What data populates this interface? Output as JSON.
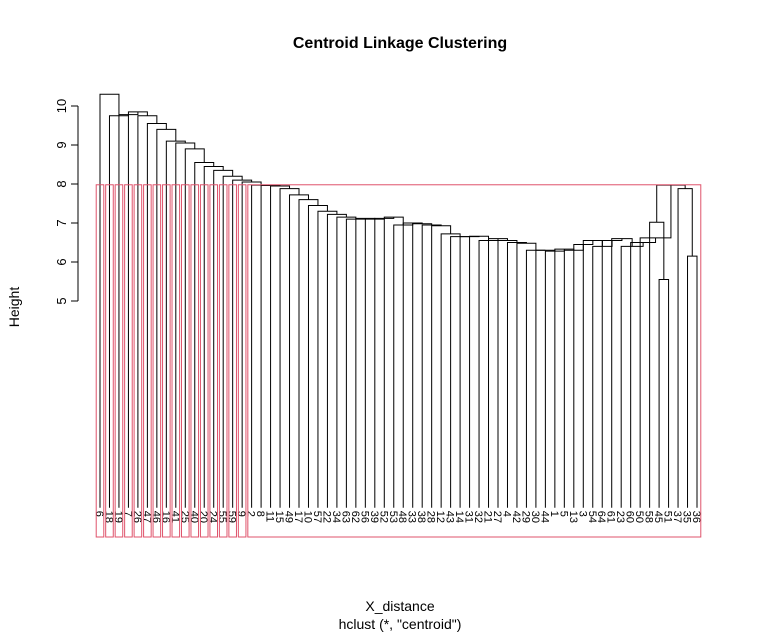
{
  "chart_data": {
    "type": "dendrogram",
    "title": "Centroid Linkage Clustering",
    "xlabel": "X_distance",
    "subtitle": "hclust (*, \"centroid\")",
    "ylabel": "Height",
    "labels": [
      6,
      18,
      19,
      7,
      26,
      47,
      46,
      16,
      41,
      25,
      40,
      20,
      24,
      55,
      59,
      9,
      2,
      8,
      11,
      15,
      49,
      17,
      10,
      57,
      22,
      34,
      63,
      62,
      56,
      39,
      52,
      53,
      48,
      33,
      38,
      28,
      12,
      43,
      14,
      31,
      32,
      21,
      27,
      4,
      42,
      29,
      30,
      44,
      1,
      5,
      13,
      3,
      54,
      64,
      61,
      23,
      60,
      50,
      58,
      45,
      51,
      37,
      35,
      36
    ],
    "merge": [
      [
        -63,
        -64
      ],
      [
        -62,
        1
      ],
      [
        -60,
        -61
      ],
      [
        -59,
        3
      ],
      [
        4,
        2
      ],
      [
        -58,
        5
      ],
      [
        -57,
        6
      ],
      [
        -56,
        7
      ],
      [
        -55,
        8
      ],
      [
        -54,
        9
      ],
      [
        -53,
        10
      ],
      [
        -52,
        11
      ],
      [
        -51,
        12
      ],
      [
        -50,
        13
      ],
      [
        -49,
        14
      ],
      [
        -48,
        15
      ],
      [
        -47,
        16
      ],
      [
        -46,
        17
      ],
      [
        -45,
        18
      ],
      [
        -44,
        19
      ],
      [
        -43,
        20
      ],
      [
        -42,
        21
      ],
      [
        -41,
        22
      ],
      [
        -40,
        23
      ],
      [
        -39,
        24
      ],
      [
        -38,
        25
      ],
      [
        -37,
        26
      ],
      [
        -36,
        27
      ],
      [
        -35,
        28
      ],
      [
        -34,
        29
      ],
      [
        -33,
        30
      ],
      [
        -32,
        31
      ],
      [
        -31,
        32
      ],
      [
        -30,
        33
      ],
      [
        -29,
        34
      ],
      [
        -28,
        35
      ],
      [
        -27,
        36
      ],
      [
        -26,
        37
      ],
      [
        -25,
        38
      ],
      [
        -24,
        39
      ],
      [
        -23,
        40
      ],
      [
        -22,
        41
      ],
      [
        -21,
        42
      ],
      [
        -20,
        43
      ],
      [
        -19,
        44
      ],
      [
        -18,
        45
      ],
      [
        -17,
        46
      ],
      [
        -16,
        47
      ],
      [
        -15,
        48
      ],
      [
        -14,
        49
      ],
      [
        -13,
        50
      ],
      [
        -12,
        51
      ],
      [
        -11,
        52
      ],
      [
        -10,
        53
      ],
      [
        -9,
        54
      ],
      [
        -8,
        55
      ],
      [
        -7,
        56
      ],
      [
        -6,
        57
      ],
      [
        -5,
        58
      ],
      [
        -4,
        59
      ],
      [
        -3,
        60
      ],
      [
        -2,
        61
      ],
      [
        -1,
        62
      ]
    ],
    "height": [
      6.15,
      7.88,
      5.55,
      7.02,
      7.97,
      6.62,
      6.5,
      6.4,
      6.6,
      6.55,
      6.4,
      6.55,
      6.45,
      6.3,
      6.33,
      6.28,
      6.3,
      6.3,
      6.48,
      6.5,
      6.55,
      6.6,
      6.55,
      6.66,
      6.65,
      6.65,
      6.72,
      6.93,
      6.95,
      6.98,
      7.0,
      6.95,
      7.15,
      7.12,
      7.1,
      7.12,
      7.1,
      7.15,
      7.22,
      7.3,
      7.45,
      7.6,
      7.72,
      7.88,
      7.95,
      7.96,
      7.97,
      8.05,
      8.1,
      8.2,
      8.35,
      8.45,
      8.55,
      8.9,
      9.05,
      9.1,
      9.4,
      9.55,
      9.75,
      9.85,
      9.78,
      9.75,
      10.3
    ],
    "ylim": [
      -0.3,
      10.3
    ],
    "yticks": [
      5,
      6,
      7,
      8,
      9,
      10
    ],
    "color": "#000000",
    "cut_height": 7.98,
    "box_color": "#DF536B"
  }
}
